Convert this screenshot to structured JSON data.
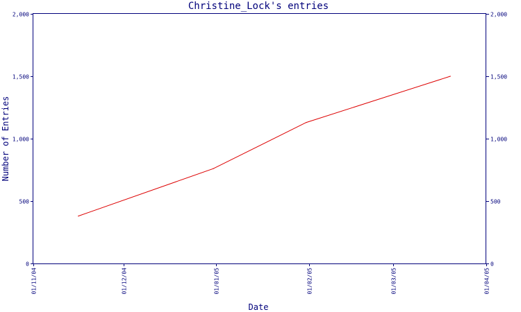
{
  "chart_data": {
    "type": "line",
    "title": "Christine_Lock's entries",
    "xlabel": "Date",
    "ylabel": "Number of Entries",
    "x_axis": {
      "type": "date",
      "range": [
        "2004-11-01",
        "2005-04-01"
      ],
      "ticks": [
        {
          "date": "2004-11-01",
          "label": "01/11/04"
        },
        {
          "date": "2004-12-01",
          "label": "01/12/04"
        },
        {
          "date": "2005-01-01",
          "label": "01/01/05"
        },
        {
          "date": "2005-02-01",
          "label": "01/02/05"
        },
        {
          "date": "2005-03-01",
          "label": "01/03/05"
        },
        {
          "date": "2005-04-01",
          "label": "01/04/05"
        }
      ]
    },
    "y_axis": {
      "range": [
        0,
        2000
      ],
      "ticks": [
        {
          "value": 0,
          "label": "0"
        },
        {
          "value": 500,
          "label": "500"
        },
        {
          "value": 1000,
          "label": "1,000"
        },
        {
          "value": 1500,
          "label": "1,500"
        },
        {
          "value": 2000,
          "label": "2,000"
        }
      ],
      "right_axis_mirrored": true
    },
    "grid": false,
    "series": [
      {
        "color": "#dd0000",
        "points": [
          {
            "x": "2004-11-16",
            "y": 380
          },
          {
            "x": "2004-12-31",
            "y": 760
          },
          {
            "x": "2005-01-31",
            "y": 1130
          },
          {
            "x": "2005-03-20",
            "y": 1500
          }
        ]
      }
    ]
  }
}
